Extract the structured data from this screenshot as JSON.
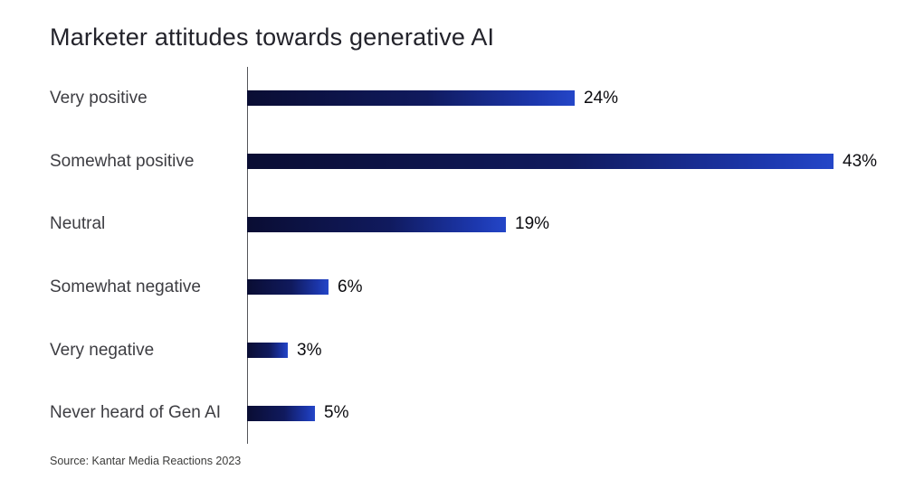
{
  "title": "Marketer attitudes towards generative AI",
  "source": "Source: Kantar Media Reactions 2023",
  "chart_data": {
    "type": "bar",
    "orientation": "horizontal",
    "title": "Marketer attitudes towards generative AI",
    "categories": [
      "Very positive",
      "Somewhat positive",
      "Neutral",
      "Somewhat negative",
      "Very negative",
      "Never heard of Gen AI"
    ],
    "values": [
      24,
      43,
      19,
      6,
      3,
      5
    ],
    "value_labels": [
      "24%",
      "43%",
      "19%",
      "6%",
      "3%",
      "5%"
    ],
    "xlabel": "",
    "ylabel": "",
    "xlim": [
      0,
      45
    ],
    "grid": false,
    "legend": false,
    "bar_gradient": [
      "#0a0d33",
      "#2446c8"
    ],
    "axis_color": "#55565a",
    "label_color": "#3d3d42",
    "value_color": "#0b0b0f",
    "background": "#ffffff"
  }
}
